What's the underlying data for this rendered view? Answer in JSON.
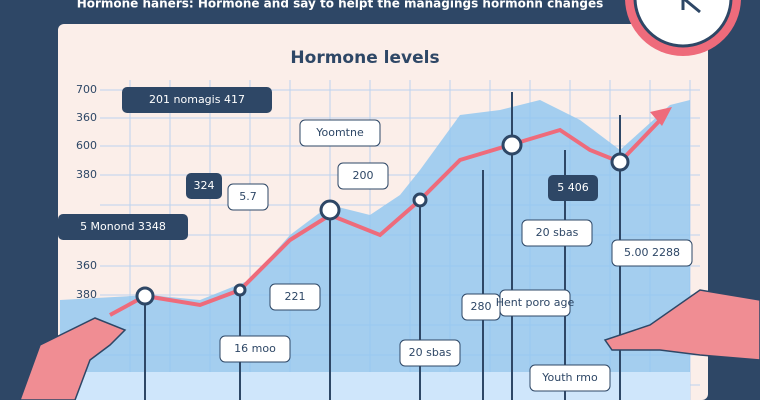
{
  "header": {
    "text": "Hormone haners: Hormone and say to helpt the managings hormonn changes"
  },
  "title": "Hormone levels",
  "y_labels": [
    "700",
    "360",
    "600",
    "380",
    "360",
    "380"
  ],
  "callouts": [
    "201 nomagis 417",
    "Yoomtne",
    "324",
    "5.7",
    "200",
    "5 Monond 3348",
    "5 406",
    "20 sbas",
    "5.00 2288",
    "221",
    "280",
    "Hent poro age",
    "16 moo",
    "20 sbas",
    "Youth rmo"
  ]
}
